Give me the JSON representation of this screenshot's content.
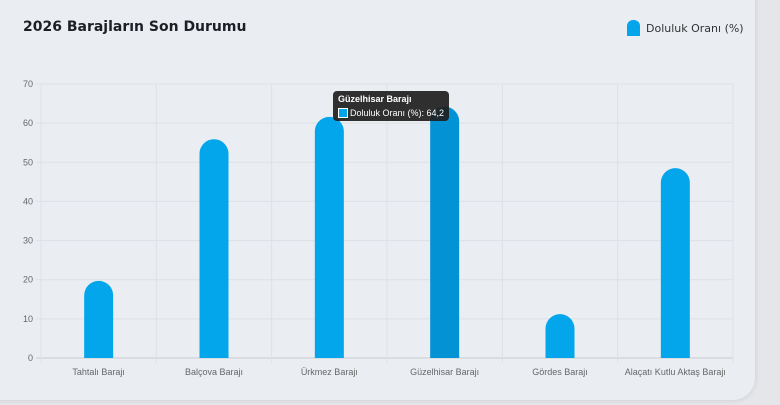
{
  "title": "2026 Barajların Son Durumu",
  "colors": {
    "bar": "#03a5eb",
    "bar_hover": "#0393d4"
  },
  "tooltip": {
    "title": "Güzelhisar Barajı",
    "label": "Doluluk Oranı (%): 64,2"
  },
  "chart_data": {
    "type": "bar",
    "title": "2026 Barajların Son Durumu",
    "categories": [
      "Tahtalı Barajı",
      "Balçova Barajı",
      "Ürkmez Barajı",
      "Güzelhisar Barajı",
      "Gördes Barajı",
      "Alaçatı Kutlu Aktaş Barajı"
    ],
    "series": [
      {
        "name": "Doluluk Oranı (%)",
        "values": [
          19.7,
          55.9,
          61.6,
          64.2,
          11.2,
          48.5
        ]
      }
    ],
    "ylim": [
      0,
      70
    ],
    "yticks": [
      0,
      10,
      20,
      30,
      40,
      50,
      60,
      70
    ],
    "grid": true,
    "legend": "top-right",
    "highlighted_category": "Güzelhisar Barajı"
  }
}
